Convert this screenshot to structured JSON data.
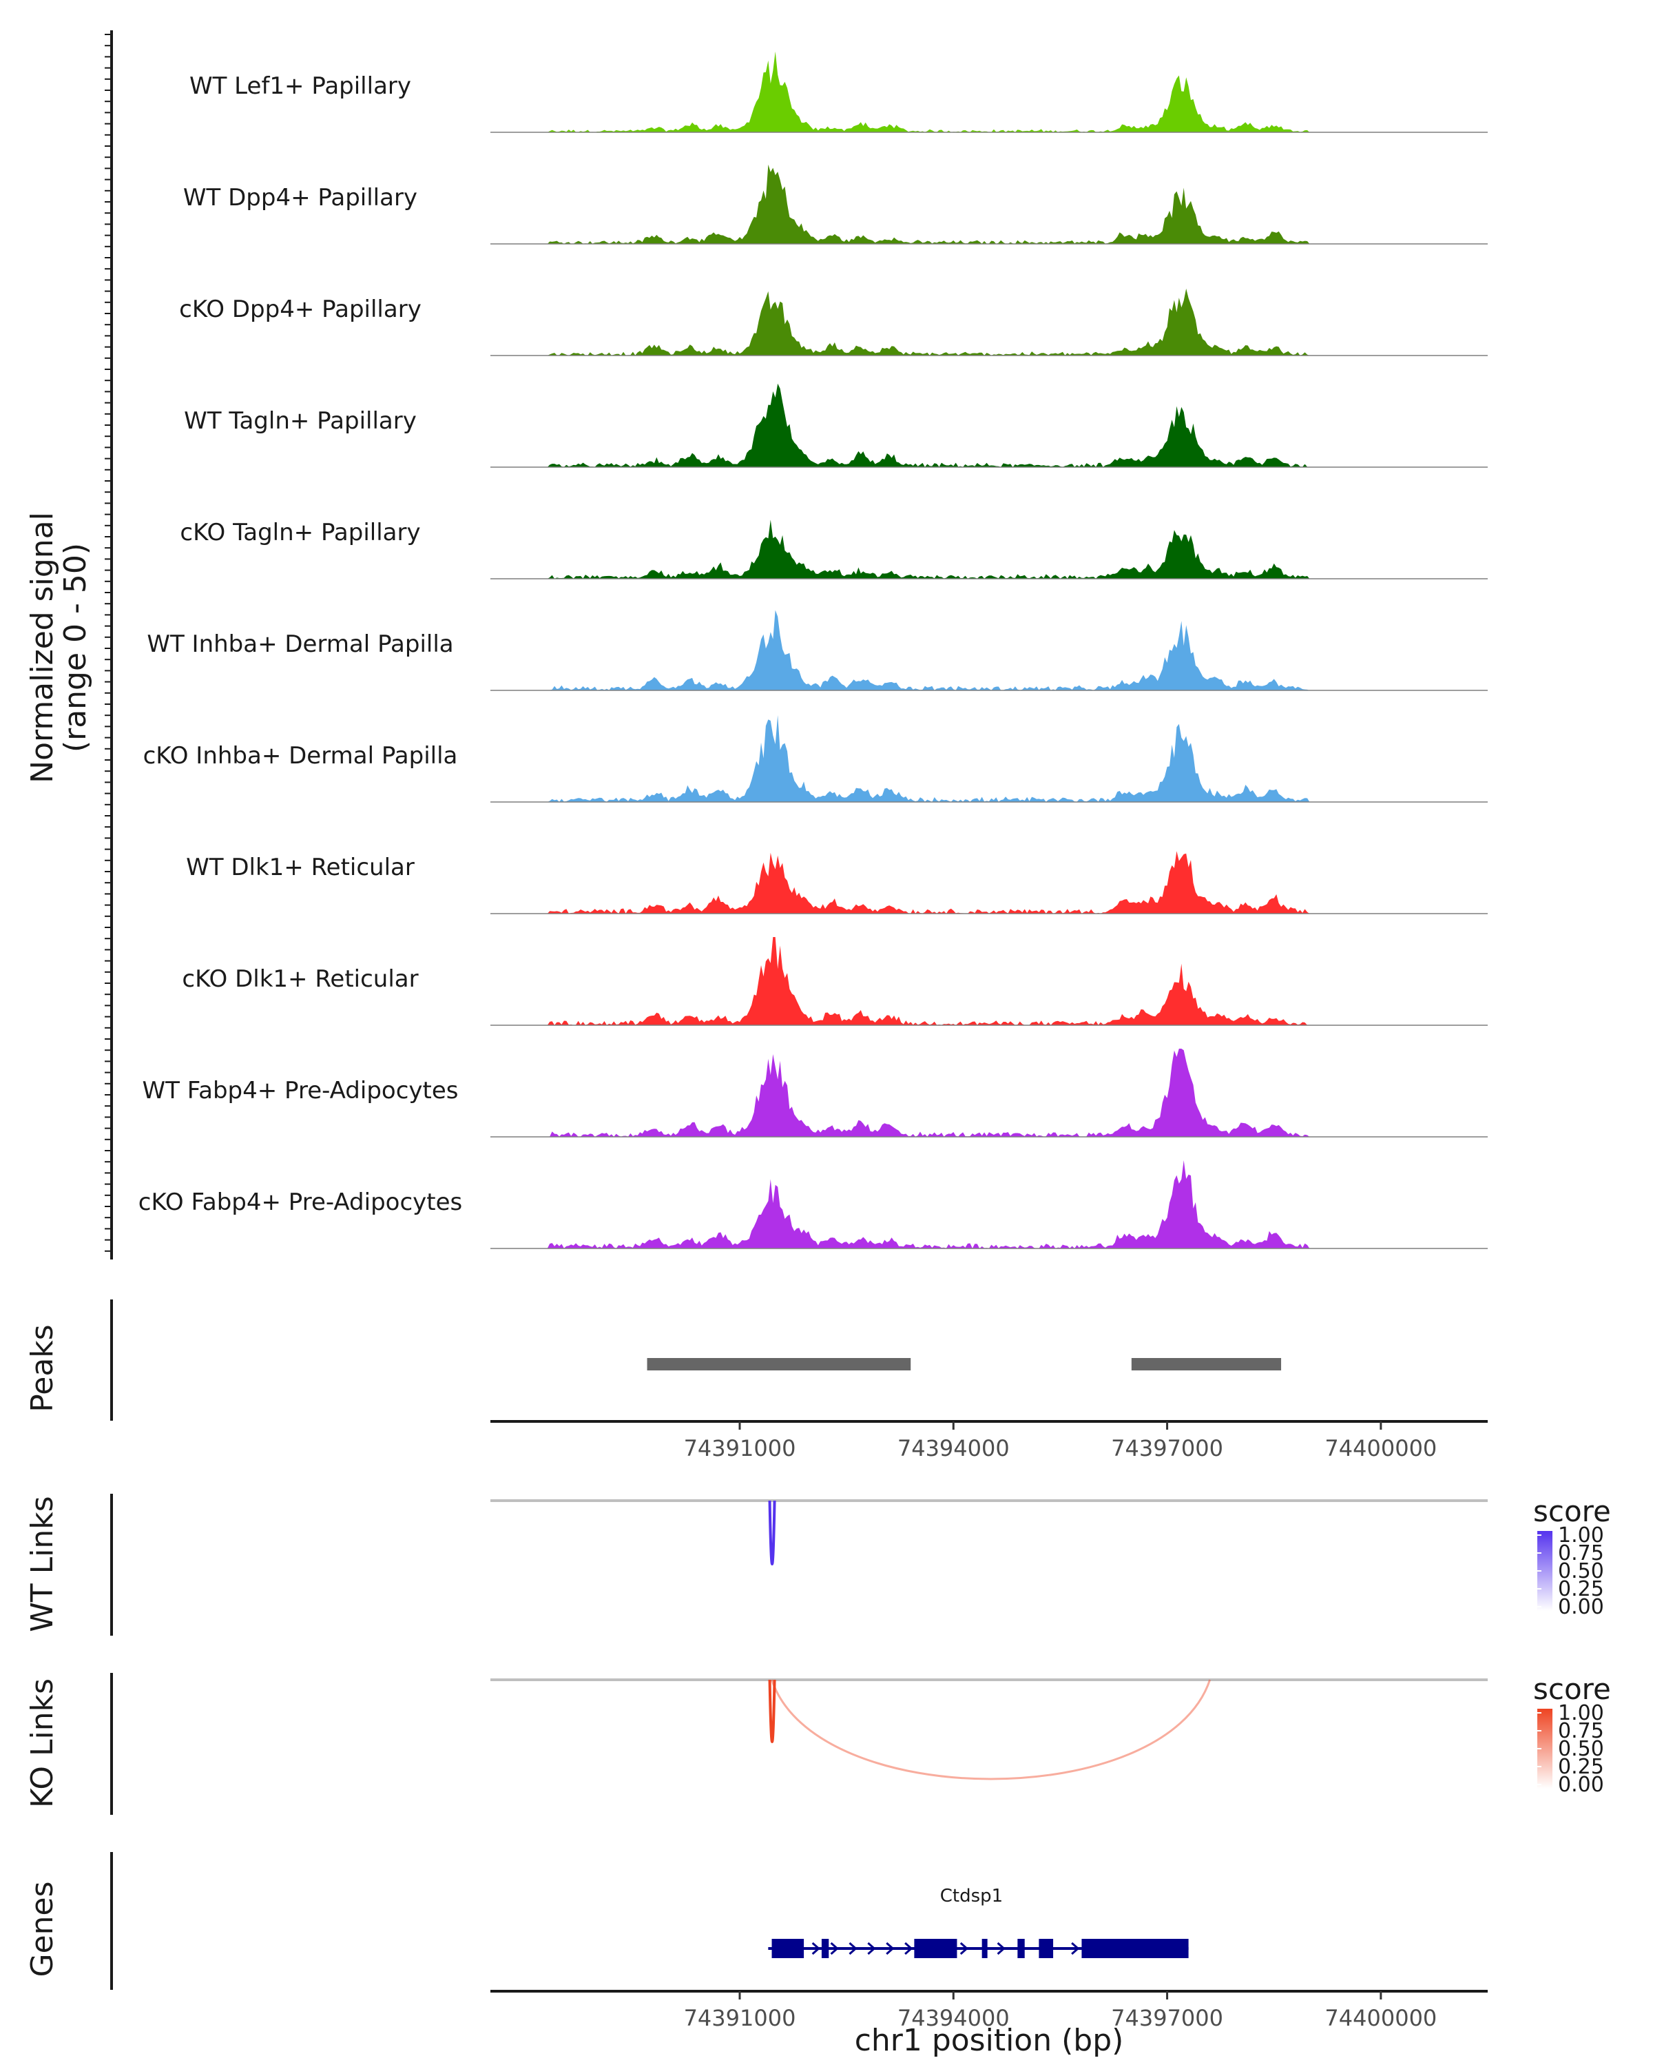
{
  "chart_data": {
    "type": "area",
    "title": "",
    "ylabel": "Normalized signal\n(range 0 - 50)",
    "xlabel": "chr1 position (bp)",
    "x_range": [
      74387500,
      74401500
    ],
    "x_ticks": [
      74391000,
      74394000,
      74397000,
      74400000
    ],
    "x_tick_labels": [
      "74391000",
      "74394000",
      "74397000",
      "74400000"
    ],
    "y_range": [
      0,
      50
    ],
    "tracks": [
      {
        "name": "WT Lef1+ Papillary",
        "color": "#6acd00",
        "peak1": 42,
        "peak2": 32,
        "noise": 0.35
      },
      {
        "name": "WT Dpp4+ Papillary",
        "color": "#4a8b06",
        "peak1": 45,
        "peak2": 30,
        "noise": 0.45
      },
      {
        "name": "cKO Dpp4+ Papillary",
        "color": "#4a8b06",
        "peak1": 35,
        "peak2": 38,
        "noise": 0.45
      },
      {
        "name": "WT Tagln+ Papillary",
        "color": "#006400",
        "peak1": 48,
        "peak2": 35,
        "noise": 0.5
      },
      {
        "name": "cKO Tagln+ Papillary",
        "color": "#006400",
        "peak1": 32,
        "peak2": 30,
        "noise": 0.5
      },
      {
        "name": "WT Inhba+ Dermal Papilla",
        "color": "#5aa9e6",
        "peak1": 42,
        "peak2": 38,
        "noise": 0.55
      },
      {
        "name": "cKO Inhba+ Dermal Papilla",
        "color": "#5aa9e6",
        "peak1": 48,
        "peak2": 42,
        "noise": 0.6
      },
      {
        "name": "WT Dlk1+ Reticular",
        "color": "#ff2e2e",
        "peak1": 35,
        "peak2": 35,
        "noise": 0.6
      },
      {
        "name": "cKO Dlk1+ Reticular",
        "color": "#ff2e2e",
        "peak1": 48,
        "peak2": 30,
        "noise": 0.55
      },
      {
        "name": "WT Fabp4+ Pre-Adipocytes",
        "color": "#b030e8",
        "peak1": 48,
        "peak2": 55,
        "noise": 0.6
      },
      {
        "name": "cKO Fabp4+ Pre-Adipocytes",
        "color": "#b030e8",
        "peak1": 35,
        "peak2": 52,
        "noise": 0.6
      }
    ],
    "peaks": {
      "label": "Peaks",
      "color": "#666666",
      "regions": [
        [
          74389700,
          74393400
        ],
        [
          74396500,
          74398600
        ]
      ]
    },
    "wt_links": {
      "label": "WT Links",
      "color": "#5533ee",
      "links": [
        {
          "start": 74391450,
          "end": 74391460,
          "score": 1.0
        }
      ]
    },
    "ko_links": {
      "label": "KO Links",
      "color": "#ee4422",
      "links": [
        {
          "start": 74391450,
          "end": 74391460,
          "score": 1.0
        },
        {
          "start": 74391450,
          "end": 74397600,
          "score": 0.25
        }
      ]
    },
    "legend": {
      "title": "score",
      "ticks": [
        "1.00",
        "0.75",
        "0.50",
        "0.25",
        "0.00"
      ],
      "placement": "right"
    },
    "gene": {
      "label": "Genes",
      "name": "Ctdsp1",
      "color": "#00008b",
      "strand": "+",
      "start": 74391400,
      "end": 74397300,
      "exons": [
        [
          74391450,
          74391900
        ],
        [
          74392150,
          74392250
        ],
        [
          74393450,
          74394050
        ],
        [
          74394400,
          74394450
        ],
        [
          74394900,
          74395000
        ],
        [
          74395200,
          74395400
        ],
        [
          74395800,
          74397300
        ]
      ]
    }
  }
}
